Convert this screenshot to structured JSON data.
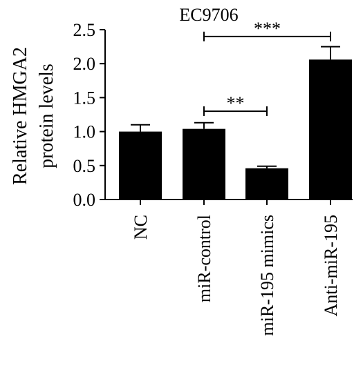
{
  "chart_data": {
    "type": "bar",
    "title": "EC9706",
    "ylabel_line1": "Relative HMGA2",
    "ylabel_line2": "protein levels",
    "xlabel": "",
    "categories": [
      "NC",
      "miR-control",
      "miR-195 mimics",
      "Anti-miR-195"
    ],
    "values": [
      1.0,
      1.04,
      0.46,
      2.06
    ],
    "errors": [
      0.1,
      0.09,
      0.03,
      0.19
    ],
    "ylim": [
      0,
      2.5
    ],
    "yticks": [
      "0.0",
      "0.5",
      "1.0",
      "1.5",
      "2.0",
      "2.5"
    ],
    "grid": false,
    "significance": [
      {
        "from": 1,
        "to": 2,
        "label": "**",
        "y": 1.3
      },
      {
        "from": 1,
        "to": 3,
        "label": "***",
        "y": 2.4
      }
    ],
    "colors": {
      "bar": "#000000",
      "axis": "#000000"
    }
  }
}
